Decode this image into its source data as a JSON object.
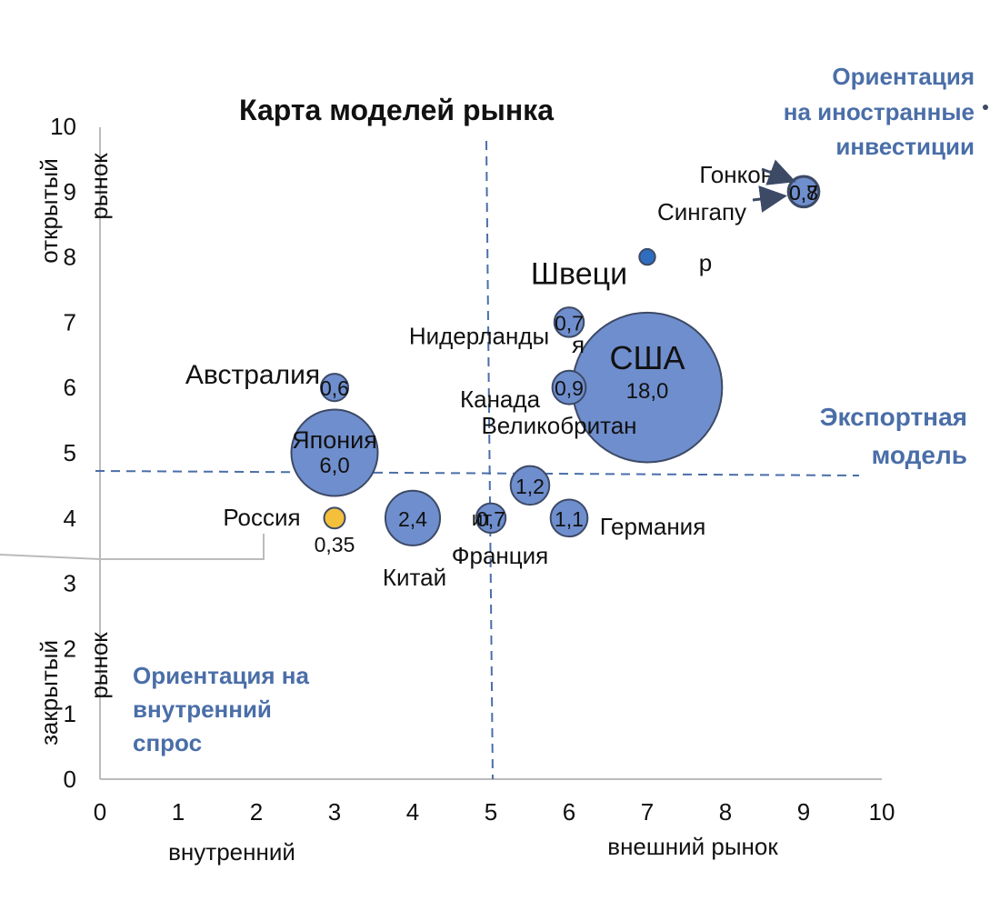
{
  "chart_data": {
    "type": "scatter",
    "title": "Карта моделей рынка",
    "xlim": [
      0,
      10
    ],
    "ylim": [
      0,
      10
    ],
    "x_ticks": [
      "0",
      "1",
      "2",
      "3",
      "4",
      "5",
      "6",
      "7",
      "8",
      "9",
      "10"
    ],
    "y_ticks": [
      "0",
      "1",
      "2",
      "3",
      "4",
      "5",
      "6",
      "7",
      "8",
      "9",
      "10"
    ],
    "xlabel_left": "внутренний",
    "xlabel_right": "внешний рынок",
    "ylabel_top": [
      "открытый",
      "рынок"
    ],
    "ylabel_bottom": [
      "закрытый",
      "рынок"
    ],
    "quadrant_notes": {
      "top_right": [
        "Ориентация",
        "на иностранные",
        "инвестиции"
      ],
      "right": [
        "Экспортная",
        "модель"
      ],
      "bottom_left": [
        "Ориентация на",
        "внутренний",
        "спрос"
      ]
    },
    "points": [
      {
        "country": "США",
        "x": 7.0,
        "y": 6.0,
        "value": "18,0",
        "size": 18.0
      },
      {
        "country": "Япония",
        "x": 3.0,
        "y": 5.0,
        "value": "6,0",
        "size": 6.0
      },
      {
        "country": "Китай",
        "x": 4.0,
        "y": 4.0,
        "value": "2,4",
        "size": 2.4
      },
      {
        "country": "Великобритан",
        "x": 5.5,
        "y": 4.5,
        "value": "1,2",
        "size": 1.2
      },
      {
        "country": "Германия",
        "x": 6.0,
        "y": 4.0,
        "value": "1,1",
        "size": 1.1
      },
      {
        "country": "Франция",
        "x": 5.0,
        "y": 4.0,
        "value": "0,7",
        "size": 0.7
      },
      {
        "country": "Канада",
        "x": 6.0,
        "y": 6.0,
        "value": "0,9",
        "size": 0.9
      },
      {
        "country": "Нидерланды",
        "x": 6.0,
        "y": 7.0,
        "value": "0,7",
        "size": 0.7
      },
      {
        "country": "Австралия",
        "x": 3.0,
        "y": 6.0,
        "value": "0,6",
        "size": 0.6
      },
      {
        "country": "Россия",
        "x": 3.0,
        "y": 4.0,
        "value": "0,35",
        "size": 0.35
      },
      {
        "country": "Швеци",
        "x": 7.0,
        "y": 8.0,
        "value": "",
        "size": 0.2
      },
      {
        "country": "Гонконг",
        "x": 9.0,
        "y": 9.0,
        "value": "0,7",
        "size": 0.7
      },
      {
        "country": "Сингапу",
        "x": 9.0,
        "y": 9.0,
        "value": "0,8",
        "size": 0.8
      }
    ],
    "stray_text": {
      "ya": "я",
      "r": "р",
      "it": "ит"
    },
    "colors": {
      "bubble": "#6f8ecd",
      "bubble_stroke": "#3d4a66",
      "russia": "#f4c03c",
      "sweden": "#2f6dbf",
      "note": "#4a6ea8"
    }
  }
}
